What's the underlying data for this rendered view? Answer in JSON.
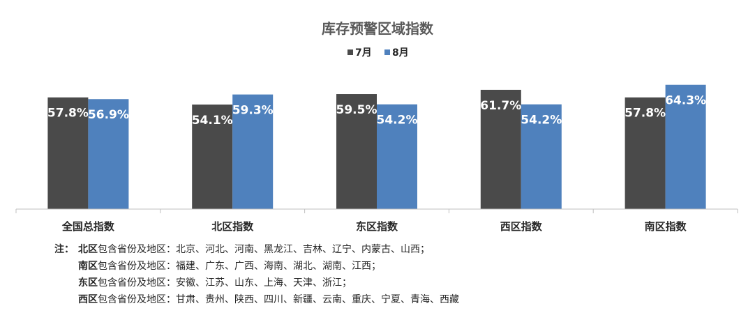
{
  "colors": {
    "jul": "#4a4a4a",
    "aug": "#4f81bd"
  },
  "notes": {
    "prefix": "注：",
    "lines": [
      {
        "region": "北区",
        "text": "包含省份及地区：北京、河北、河南、黑龙江、吉林、辽宁、内蒙古、山西；"
      },
      {
        "region": "南区",
        "text": "包含省份及地区：福建、广东、广西、海南、湖北、湖南、江西；"
      },
      {
        "region": "东区",
        "text": "包含省份及地区：安徽、江苏、山东、上海、天津、浙江；"
      },
      {
        "region": "西区",
        "text": "包含省份及地区：甘肃、贵州、陕西、四川、新疆、云南、重庆、宁夏、青海、西藏"
      }
    ]
  },
  "chart_data": {
    "type": "bar",
    "title": "库存预警区域指数",
    "categories": [
      "全国总指数",
      "北区指数",
      "东区指数",
      "西区指数",
      "南区指数"
    ],
    "series": [
      {
        "name": "7月",
        "values": [
          57.8,
          54.1,
          59.5,
          61.7,
          57.8
        ],
        "labels": [
          "57.8%",
          "54.1%",
          "59.5%",
          "61.7%",
          "57.8%"
        ],
        "color": "#4a4a4a"
      },
      {
        "name": "8月",
        "values": [
          56.9,
          59.3,
          54.2,
          54.2,
          64.3
        ],
        "labels": [
          "56.9%",
          "59.3%",
          "54.2%",
          "54.2%",
          "64.3%"
        ],
        "color": "#4f81bd"
      }
    ],
    "unit": "%",
    "legend": "top-center",
    "grid": false,
    "ylim": [
      0,
      66
    ]
  }
}
